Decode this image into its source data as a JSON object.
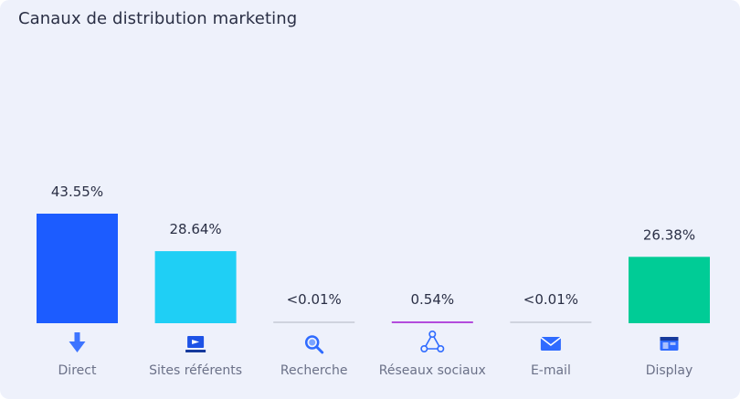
{
  "title": "Canaux de distribution marketing",
  "chart_data": {
    "type": "bar",
    "title": "Canaux de distribution marketing",
    "categories": [
      "Direct",
      "Sites référents",
      "Recherche",
      "Réseaux sociaux",
      "E-mail",
      "Display"
    ],
    "values": [
      43.55,
      28.64,
      0.005,
      0.54,
      0.005,
      26.38
    ],
    "labels": [
      "43.55%",
      "28.64%",
      "<0.01%",
      "0.54%",
      "<0.01%",
      "26.38%"
    ],
    "colors": [
      "#1c5cff",
      "#1fcff5",
      "#cfd3de",
      "#b34bdc",
      "#cfd3de",
      "#00cc96"
    ],
    "icons": [
      "download-arrow-icon",
      "referral-icon",
      "search-icon",
      "social-network-icon",
      "mail-icon",
      "display-icon"
    ],
    "ylim": [
      0,
      43.55
    ],
    "grid": false,
    "legend": "none"
  }
}
